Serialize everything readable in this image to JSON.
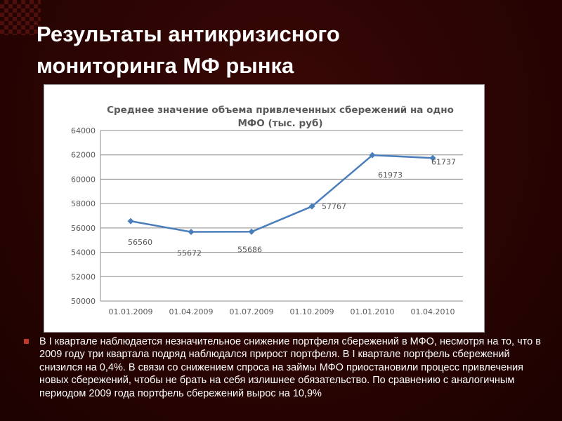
{
  "slide": {
    "title_line1": "Результаты антикризисного",
    "title_line2": "мониторинга МФ рынка",
    "paragraph": "В I квартале наблюдается незначительное снижение портфеля сбережений в МФО, несмотря на то, что в 2009 году три квартала подряд наблюдался прирост портфеля. В I квартале портфель сбережений снизился на 0,4%. В связи со снижением спроса на займы МФО приостановили процесс привлечения новых сбережений, чтобы не брать на себя излишнее обязательство. По сравнению с аналогичным периодом 2009 года портфель сбережений вырос на 10,9%"
  },
  "colors": {
    "background": "#2e0503",
    "line": "#4a7ebb",
    "bullet": "#c0392b"
  },
  "chart_data": {
    "type": "line",
    "title_line1": "Среднее значение объема привлеченных сбережений на одно",
    "title_line2": "МФО (тыс. руб)",
    "categories": [
      "01.01.2009",
      "01.04.2009",
      "01.07.2009",
      "01.10.2009",
      "01.01.2010",
      "01.04.2010"
    ],
    "series": [
      {
        "values": [
          56560,
          55672,
          55686,
          57767,
          61973,
          61737
        ]
      }
    ],
    "data_labels": [
      "56560",
      "55672",
      "55686",
      "57767",
      "61973",
      "61737"
    ],
    "y_ticks": [
      "50000",
      "52000",
      "54000",
      "56000",
      "58000",
      "60000",
      "62000",
      "64000"
    ],
    "ylim": [
      50000,
      64000
    ],
    "grid": true,
    "legend": "none",
    "marker": "diamond"
  }
}
